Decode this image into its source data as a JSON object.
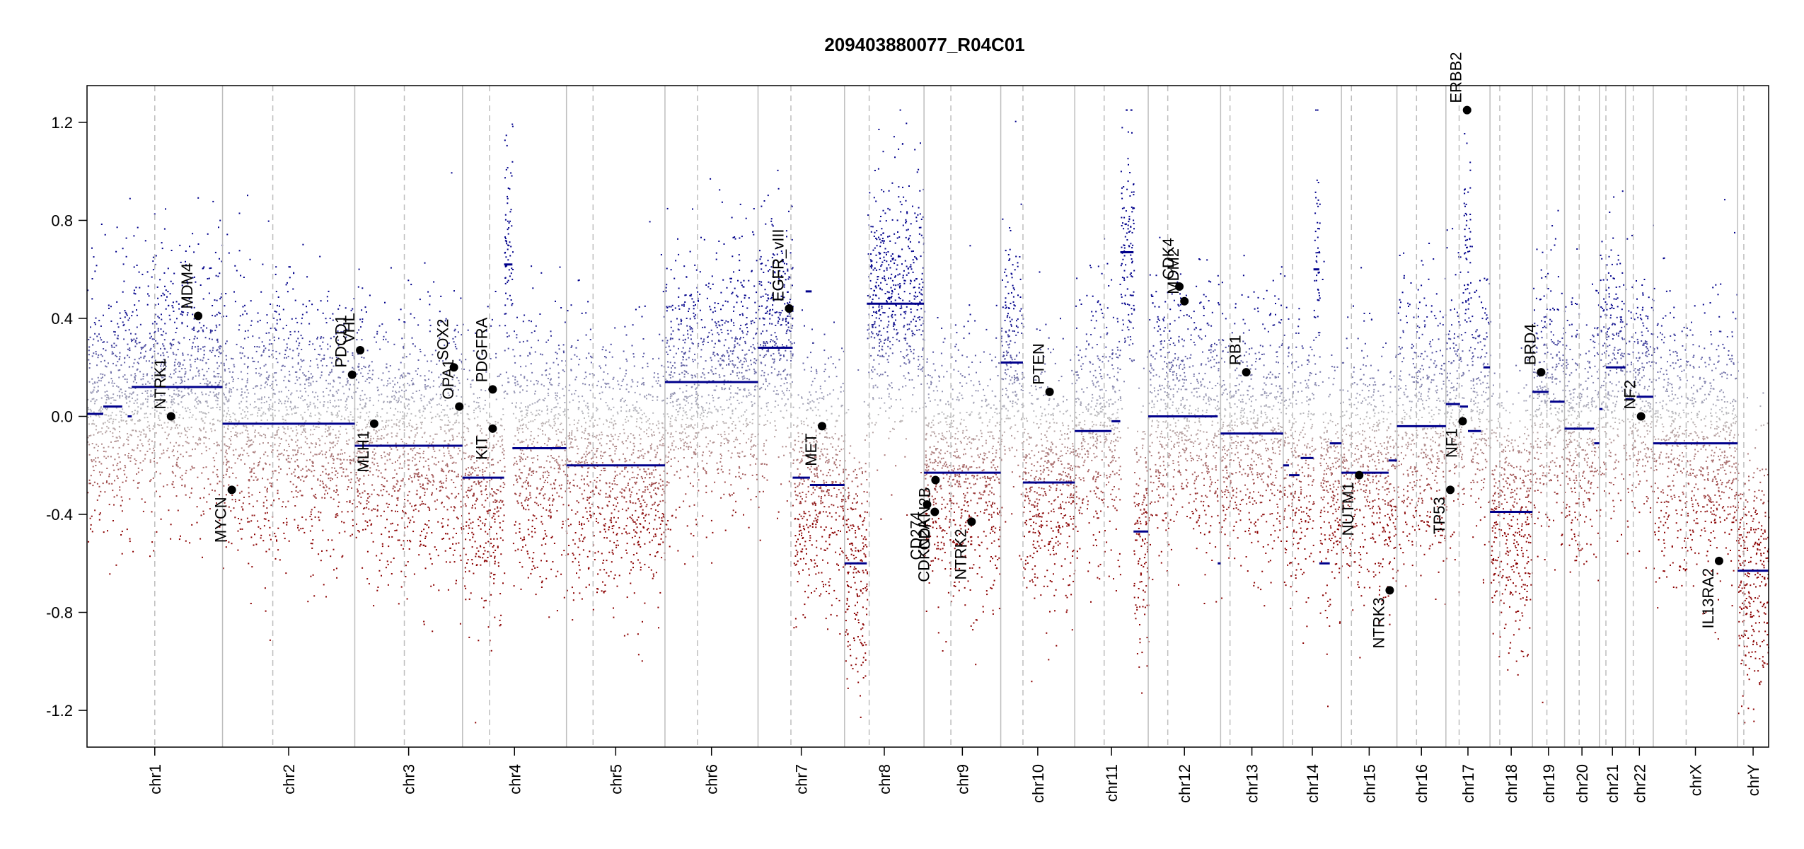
{
  "chart_data": {
    "type": "scatter",
    "title": "209403880077_R04C01",
    "xlabel": "",
    "ylabel": "",
    "ylim": [
      -1.35,
      1.35
    ],
    "yticks": [
      -1.2,
      -0.8,
      -0.4,
      0.0,
      0.4,
      0.8,
      1.2
    ],
    "ytick_labels": [
      "-1.2",
      "-0.8",
      "-0.4",
      "0.0",
      "0.4",
      "0.8",
      "1.2"
    ],
    "colors": {
      "gain": "#00008b",
      "loss": "#8b0000",
      "neutral": "#bebebe",
      "segment": "#00008b",
      "gene_point": "#000000"
    },
    "chromosomes": [
      {
        "name": "chr1",
        "len": 249,
        "centromere": 0.5
      },
      {
        "name": "chr2",
        "len": 243,
        "centromere": 0.38
      },
      {
        "name": "chr3",
        "len": 198,
        "centromere": 0.46
      },
      {
        "name": "chr4",
        "len": 191,
        "centromere": 0.26
      },
      {
        "name": "chr5",
        "len": 181,
        "centromere": 0.27
      },
      {
        "name": "chr6",
        "len": 171,
        "centromere": 0.35
      },
      {
        "name": "chr7",
        "len": 159,
        "centromere": 0.38
      },
      {
        "name": "chr8",
        "len": 146,
        "centromere": 0.31
      },
      {
        "name": "chr9",
        "len": 141,
        "centromere": 0.35
      },
      {
        "name": "chr10",
        "len": 136,
        "centromere": 0.3
      },
      {
        "name": "chr11",
        "len": 135,
        "centromere": 0.4
      },
      {
        "name": "chr12",
        "len": 133,
        "centromere": 0.27
      },
      {
        "name": "chr13",
        "len": 115,
        "centromere": 0.15
      },
      {
        "name": "chr14",
        "len": 107,
        "centromere": 0.16
      },
      {
        "name": "chr15",
        "len": 102,
        "centromere": 0.18
      },
      {
        "name": "chr16",
        "len": 90,
        "centromere": 0.4
      },
      {
        "name": "chr17",
        "len": 81,
        "centromere": 0.3
      },
      {
        "name": "chr18",
        "len": 78,
        "centromere": 0.23
      },
      {
        "name": "chr19",
        "len": 59,
        "centromere": 0.45
      },
      {
        "name": "chr20",
        "len": 64,
        "centromere": 0.42
      },
      {
        "name": "chr21",
        "len": 48,
        "centromere": 0.25
      },
      {
        "name": "chr22",
        "len": 51,
        "centromere": 0.28
      },
      {
        "name": "chrX",
        "len": 155,
        "centromere": 0.39
      },
      {
        "name": "chrY",
        "len": 57,
        "centromere": 0.2
      }
    ],
    "segments": [
      {
        "chr": "chr1",
        "start": 0.0,
        "end": 0.12,
        "value": 0.01
      },
      {
        "chr": "chr1",
        "start": 0.12,
        "end": 0.26,
        "value": 0.04
      },
      {
        "chr": "chr1",
        "start": 0.3,
        "end": 0.33,
        "value": 0.0
      },
      {
        "chr": "chr1",
        "start": 0.33,
        "end": 1.0,
        "value": 0.12
      },
      {
        "chr": "chr2",
        "start": 0.0,
        "end": 1.0,
        "value": -0.03
      },
      {
        "chr": "chr3",
        "start": 0.0,
        "end": 1.0,
        "value": -0.12
      },
      {
        "chr": "chr4",
        "start": 0.0,
        "end": 0.4,
        "value": -0.25
      },
      {
        "chr": "chr4",
        "start": 0.4,
        "end": 0.48,
        "value": 0.62
      },
      {
        "chr": "chr4",
        "start": 0.48,
        "end": 1.0,
        "value": -0.13
      },
      {
        "chr": "chr5",
        "start": 0.0,
        "end": 1.0,
        "value": -0.2
      },
      {
        "chr": "chr6",
        "start": 0.0,
        "end": 1.0,
        "value": 0.14
      },
      {
        "chr": "chr7",
        "start": 0.0,
        "end": 0.4,
        "value": 0.28
      },
      {
        "chr": "chr7",
        "start": 0.4,
        "end": 0.6,
        "value": -0.25
      },
      {
        "chr": "chr7",
        "start": 0.6,
        "end": 1.0,
        "value": -0.28
      },
      {
        "chr": "chr7",
        "start": 0.55,
        "end": 0.62,
        "value": 0.51
      },
      {
        "chr": "chr8",
        "start": 0.0,
        "end": 0.28,
        "value": -0.6
      },
      {
        "chr": "chr8",
        "start": 0.28,
        "end": 1.0,
        "value": 0.46
      },
      {
        "chr": "chr9",
        "start": 0.0,
        "end": 1.0,
        "value": -0.23
      },
      {
        "chr": "chr10",
        "start": 0.0,
        "end": 0.3,
        "value": 0.22
      },
      {
        "chr": "chr10",
        "start": 0.3,
        "end": 1.0,
        "value": -0.27
      },
      {
        "chr": "chr11",
        "start": 0.0,
        "end": 0.5,
        "value": -0.06
      },
      {
        "chr": "chr11",
        "start": 0.5,
        "end": 0.62,
        "value": -0.02
      },
      {
        "chr": "chr11",
        "start": 0.62,
        "end": 0.8,
        "value": 0.67
      },
      {
        "chr": "chr11",
        "start": 0.8,
        "end": 1.0,
        "value": -0.47
      },
      {
        "chr": "chr12",
        "start": 0.0,
        "end": 0.96,
        "value": 0.0
      },
      {
        "chr": "chr12",
        "start": 0.96,
        "end": 1.0,
        "value": -0.6
      },
      {
        "chr": "chr13",
        "start": 0.0,
        "end": 1.0,
        "value": -0.07
      },
      {
        "chr": "chr14",
        "start": 0.0,
        "end": 0.1,
        "value": -0.2
      },
      {
        "chr": "chr14",
        "start": 0.1,
        "end": 0.28,
        "value": -0.24
      },
      {
        "chr": "chr14",
        "start": 0.3,
        "end": 0.52,
        "value": -0.17
      },
      {
        "chr": "chr14",
        "start": 0.52,
        "end": 0.62,
        "value": 0.6
      },
      {
        "chr": "chr14",
        "start": 0.62,
        "end": 0.8,
        "value": -0.6
      },
      {
        "chr": "chr14",
        "start": 0.8,
        "end": 1.0,
        "value": -0.11
      },
      {
        "chr": "chr15",
        "start": 0.0,
        "end": 0.85,
        "value": -0.23
      },
      {
        "chr": "chr15",
        "start": 0.85,
        "end": 1.0,
        "value": -0.18
      },
      {
        "chr": "chr16",
        "start": 0.0,
        "end": 1.0,
        "value": -0.04
      },
      {
        "chr": "chr17",
        "start": 0.0,
        "end": 0.32,
        "value": 0.05
      },
      {
        "chr": "chr17",
        "start": 0.32,
        "end": 0.5,
        "value": 0.04
      },
      {
        "chr": "chr17",
        "start": 0.5,
        "end": 0.8,
        "value": -0.06
      },
      {
        "chr": "chr17",
        "start": 0.85,
        "end": 1.0,
        "value": 0.2
      },
      {
        "chr": "chr18",
        "start": 0.0,
        "end": 1.0,
        "value": -0.39
      },
      {
        "chr": "chr19",
        "start": 0.0,
        "end": 0.5,
        "value": 0.1
      },
      {
        "chr": "chr19",
        "start": 0.55,
        "end": 1.0,
        "value": 0.06
      },
      {
        "chr": "chr20",
        "start": 0.0,
        "end": 0.85,
        "value": -0.05
      },
      {
        "chr": "chr20",
        "start": 0.85,
        "end": 1.0,
        "value": -0.11
      },
      {
        "chr": "chr21",
        "start": 0.0,
        "end": 0.12,
        "value": 0.03
      },
      {
        "chr": "chr21",
        "start": 0.25,
        "end": 1.0,
        "value": 0.2
      },
      {
        "chr": "chr22",
        "start": 0.0,
        "end": 0.3,
        "value": 0.07
      },
      {
        "chr": "chr22",
        "start": 0.4,
        "end": 1.0,
        "value": 0.08
      },
      {
        "chr": "chrX",
        "start": 0.0,
        "end": 1.0,
        "value": -0.11
      },
      {
        "chr": "chrY",
        "start": 0.0,
        "end": 1.0,
        "value": -0.63
      }
    ],
    "genes": [
      {
        "name": "NTRK1",
        "chr": "chr1",
        "pos": 0.62,
        "value": 0.0
      },
      {
        "name": "MDM4",
        "chr": "chr1",
        "pos": 0.82,
        "value": 0.41
      },
      {
        "name": "MYCN",
        "chr": "chr2",
        "pos": 0.07,
        "value": -0.3
      },
      {
        "name": "PDCD1",
        "chr": "chr2",
        "pos": 0.98,
        "value": 0.17
      },
      {
        "name": "VHL",
        "chr": "chr3",
        "pos": 0.05,
        "value": 0.27
      },
      {
        "name": "MLH1",
        "chr": "chr3",
        "pos": 0.18,
        "value": -0.03
      },
      {
        "name": "SOX2",
        "chr": "chr3",
        "pos": 0.92,
        "value": 0.2
      },
      {
        "name": "OPA1",
        "chr": "chr3",
        "pos": 0.97,
        "value": 0.04
      },
      {
        "name": "PDGFRA",
        "chr": "chr4",
        "pos": 0.29,
        "value": 0.11
      },
      {
        "name": "KIT",
        "chr": "chr4",
        "pos": 0.29,
        "value": -0.05
      },
      {
        "name": "EGFR",
        "chr": "chr7",
        "pos": 0.36,
        "value": 0.44
      },
      {
        "name": "EGFR_vIII",
        "chr": "chr7",
        "pos": 0.36,
        "value": 0.44
      },
      {
        "name": "MET",
        "chr": "chr7",
        "pos": 0.74,
        "value": -0.04
      },
      {
        "name": "CD274",
        "chr": "chr9",
        "pos": 0.04,
        "value": -0.36
      },
      {
        "name": "CDKN2A",
        "chr": "chr9",
        "pos": 0.14,
        "value": -0.39
      },
      {
        "name": "CDKN2B",
        "chr": "chr9",
        "pos": 0.15,
        "value": -0.26
      },
      {
        "name": "NTRK2",
        "chr": "chr9",
        "pos": 0.62,
        "value": -0.43
      },
      {
        "name": "PTEN",
        "chr": "chr10",
        "pos": 0.66,
        "value": 0.1
      },
      {
        "name": "CDK4",
        "chr": "chr12",
        "pos": 0.43,
        "value": 0.53
      },
      {
        "name": "MDM2",
        "chr": "chr12",
        "pos": 0.5,
        "value": 0.47
      },
      {
        "name": "RB1",
        "chr": "chr13",
        "pos": 0.41,
        "value": 0.18
      },
      {
        "name": "NUTM1",
        "chr": "chr15",
        "pos": 0.32,
        "value": -0.24
      },
      {
        "name": "NTRK3",
        "chr": "chr15",
        "pos": 0.87,
        "value": -0.71
      },
      {
        "name": "TP53",
        "chr": "chr17",
        "pos": 0.1,
        "value": -0.3
      },
      {
        "name": "NF1",
        "chr": "chr17",
        "pos": 0.38,
        "value": -0.02
      },
      {
        "name": "ERBB2",
        "chr": "chr17",
        "pos": 0.48,
        "value": 1.25
      },
      {
        "name": "BRD4",
        "chr": "chr19",
        "pos": 0.27,
        "value": 0.18
      },
      {
        "name": "NF2",
        "chr": "chr22",
        "pos": 0.56,
        "value": 0.0
      },
      {
        "name": "IL13RA2",
        "chr": "chrX",
        "pos": 0.78,
        "value": -0.59
      }
    ],
    "noise_regions": [
      {
        "chr": "chr1",
        "start": 0.0,
        "end": 0.12,
        "value": 0.01
      },
      {
        "chr": "chr1",
        "start": 0.12,
        "end": 0.3,
        "value": 0.04
      },
      {
        "chr": "chr1",
        "start": 0.3,
        "end": 0.33,
        "value": 0.02
      },
      {
        "chr": "chr1",
        "start": 0.33,
        "end": 1.0,
        "value": 0.12
      },
      {
        "chr": "chr2",
        "start": 0.0,
        "end": 1.0,
        "value": -0.03
      },
      {
        "chr": "chr3",
        "start": 0.0,
        "end": 1.0,
        "value": -0.12
      },
      {
        "chr": "chr4",
        "start": 0.0,
        "end": 0.4,
        "value": -0.25
      },
      {
        "chr": "chr4",
        "start": 0.4,
        "end": 0.48,
        "value": 0.62
      },
      {
        "chr": "chr4",
        "start": 0.48,
        "end": 1.0,
        "value": -0.13
      },
      {
        "chr": "chr5",
        "start": 0.0,
        "end": 1.0,
        "value": -0.2
      },
      {
        "chr": "chr6",
        "start": 0.0,
        "end": 1.0,
        "value": 0.14
      },
      {
        "chr": "chr7",
        "start": 0.0,
        "end": 0.4,
        "value": 0.28
      },
      {
        "chr": "chr7",
        "start": 0.4,
        "end": 1.0,
        "value": -0.26
      },
      {
        "chr": "chr8",
        "start": 0.0,
        "end": 0.28,
        "value": -0.6
      },
      {
        "chr": "chr8",
        "start": 0.28,
        "end": 1.0,
        "value": 0.46
      },
      {
        "chr": "chr9",
        "start": 0.0,
        "end": 1.0,
        "value": -0.23
      },
      {
        "chr": "chr10",
        "start": 0.0,
        "end": 0.3,
        "value": 0.22
      },
      {
        "chr": "chr10",
        "start": 0.3,
        "end": 1.0,
        "value": -0.27
      },
      {
        "chr": "chr11",
        "start": 0.0,
        "end": 0.62,
        "value": -0.05
      },
      {
        "chr": "chr11",
        "start": 0.62,
        "end": 0.8,
        "value": 0.67
      },
      {
        "chr": "chr11",
        "start": 0.8,
        "end": 1.0,
        "value": -0.47
      },
      {
        "chr": "chr12",
        "start": 0.0,
        "end": 1.0,
        "value": 0.0
      },
      {
        "chr": "chr13",
        "start": 0.0,
        "end": 1.0,
        "value": -0.07
      },
      {
        "chr": "chr14",
        "start": 0.0,
        "end": 0.52,
        "value": -0.2
      },
      {
        "chr": "chr14",
        "start": 0.52,
        "end": 0.62,
        "value": 0.6
      },
      {
        "chr": "chr14",
        "start": 0.62,
        "end": 1.0,
        "value": -0.3
      },
      {
        "chr": "chr15",
        "start": 0.0,
        "end": 1.0,
        "value": -0.22
      },
      {
        "chr": "chr16",
        "start": 0.0,
        "end": 1.0,
        "value": -0.04
      },
      {
        "chr": "chr17",
        "start": 0.0,
        "end": 0.4,
        "value": 0.04
      },
      {
        "chr": "chr17",
        "start": 0.4,
        "end": 0.55,
        "value": 0.6
      },
      {
        "chr": "chr17",
        "start": 0.55,
        "end": 1.0,
        "value": 0.05
      },
      {
        "chr": "chr18",
        "start": 0.0,
        "end": 1.0,
        "value": -0.39
      },
      {
        "chr": "chr19",
        "start": 0.0,
        "end": 1.0,
        "value": 0.08
      },
      {
        "chr": "chr20",
        "start": 0.0,
        "end": 1.0,
        "value": -0.06
      },
      {
        "chr": "chr21",
        "start": 0.0,
        "end": 1.0,
        "value": 0.18
      },
      {
        "chr": "chr22",
        "start": 0.0,
        "end": 1.0,
        "value": 0.07
      },
      {
        "chr": "chrX",
        "start": 0.0,
        "end": 1.0,
        "value": -0.11
      },
      {
        "chr": "chrY",
        "start": 0.0,
        "end": 1.0,
        "value": -0.63
      }
    ]
  }
}
